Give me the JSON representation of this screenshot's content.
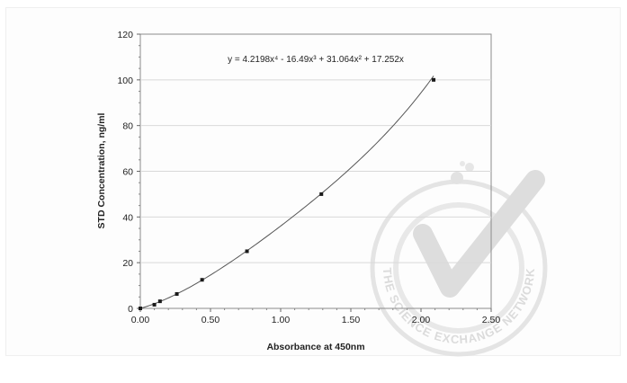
{
  "chart_data": {
    "type": "scatter",
    "xlabel": "Absorbance at 450nm",
    "ylabel": "STD Concentration, ng/ml",
    "xlim": [
      0,
      2.5
    ],
    "ylim": [
      0,
      120
    ],
    "xticks": [
      "0.00",
      "0.50",
      "1.00",
      "1.50",
      "2.00",
      "2.50"
    ],
    "yticks": [
      "0",
      "20",
      "40",
      "60",
      "80",
      "100",
      "120"
    ],
    "grid": "horizontal",
    "series": [
      {
        "x": [
          0.0,
          0.1,
          0.14,
          0.26,
          0.44,
          0.76,
          1.29,
          2.09
        ],
        "y": [
          0,
          1.6,
          3.1,
          6.3,
          12.5,
          25,
          50,
          100
        ]
      }
    ],
    "trendline": {
      "type": "polynomial",
      "coefficients": [
        17.252,
        31.064,
        -16.49,
        4.2198
      ],
      "equation": "y = 4.2198x⁴ - 16.49x³ + 31.064x² + 17.252x",
      "x_range": [
        0,
        2.09
      ]
    }
  },
  "watermark": {
    "text": "THE SCIENCE EXCHANGE NETWORK",
    "color": "#d9d9d9"
  }
}
